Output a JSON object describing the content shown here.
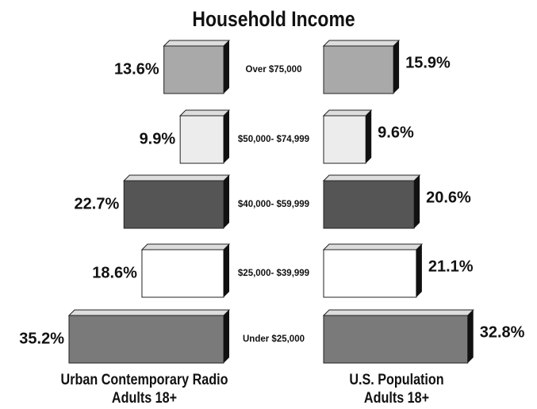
{
  "chart_data": {
    "type": "butterfly-bar",
    "title": "Household Income",
    "categories": [
      "Over $75,000",
      "$50,000- $74,999",
      "$40,000- $59,999",
      "$25,000- $39,999",
      "Under $25,000"
    ],
    "colors": [
      "#a9a9a9",
      "#ececec",
      "#555555",
      "#ffffff",
      "#7a7a7a"
    ],
    "series": [
      {
        "name": "Urban Contemporary Radio\nAdults 18+",
        "values": [
          13.6,
          9.9,
          22.7,
          18.6,
          35.2
        ],
        "value_labels": [
          "13.6%",
          "9.9%",
          "22.7%",
          "18.6%",
          "35.2%"
        ]
      },
      {
        "name": "U.S. Population\nAdults 18+",
        "values": [
          15.9,
          9.6,
          20.6,
          21.1,
          32.8
        ],
        "value_labels": [
          "15.9%",
          "9.6%",
          "20.6%",
          "21.1%",
          "32.8%"
        ]
      }
    ]
  }
}
